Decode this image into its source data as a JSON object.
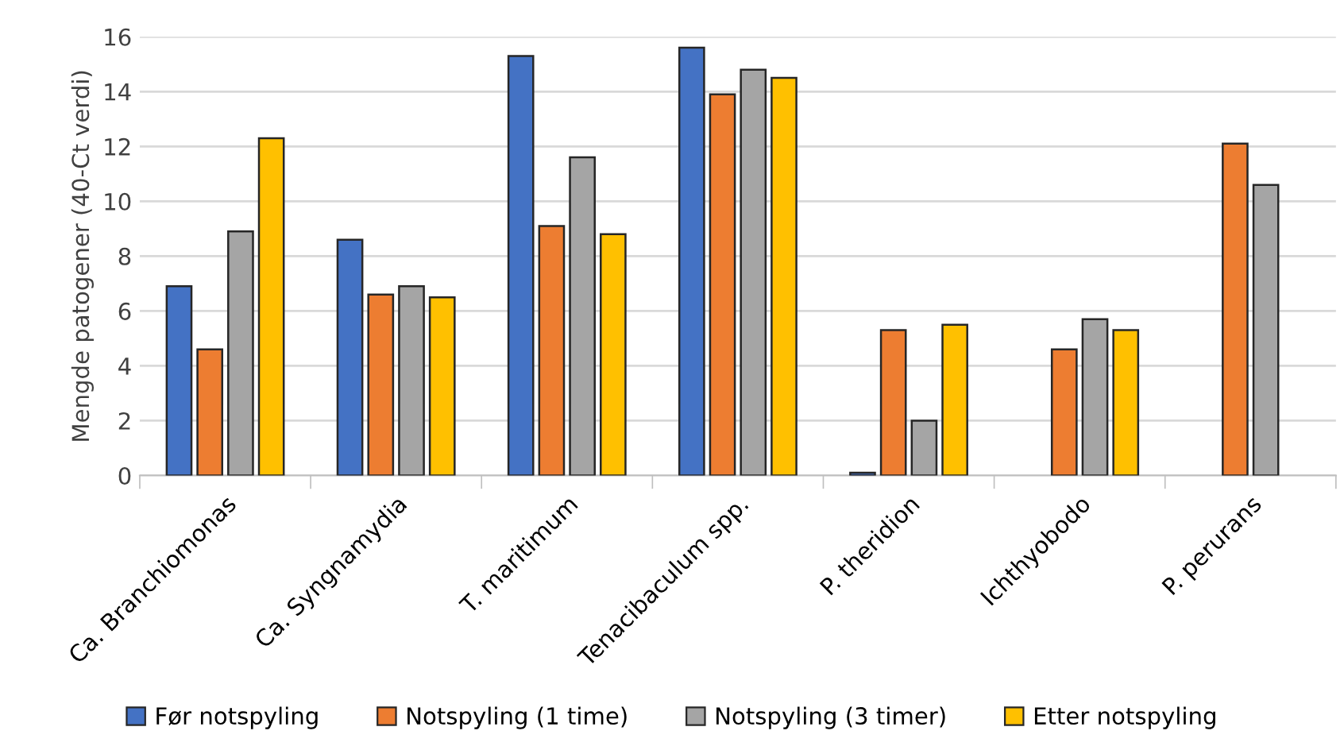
{
  "chart_data": {
    "type": "bar",
    "ylabel": "Mengde patogener (40-Ct verdi)",
    "categories": [
      "Ca. Branchiomonas",
      "Ca. Syngnamydia",
      "T. maritimum",
      "Tenacibaculum spp.",
      "P. theridion",
      "Ichthyobodo",
      "P. perurans"
    ],
    "series": [
      {
        "name": "Før notspyling",
        "color": "#4472c4",
        "values": [
          6.9,
          8.6,
          15.3,
          15.6,
          0.1,
          null,
          null
        ]
      },
      {
        "name": "Notspyling (1 time)",
        "color": "#ed7d31",
        "values": [
          4.6,
          6.6,
          9.1,
          13.9,
          5.3,
          4.6,
          12.1
        ]
      },
      {
        "name": "Notspyling (3 timer)",
        "color": "#a5a5a5",
        "values": [
          8.9,
          6.9,
          11.6,
          14.8,
          2.0,
          5.7,
          10.6
        ]
      },
      {
        "name": "Etter notspyling",
        "color": "#ffc000",
        "values": [
          12.3,
          6.5,
          8.8,
          14.5,
          5.5,
          5.3,
          null
        ]
      }
    ],
    "ylim": [
      0,
      16
    ],
    "yticks": [
      0,
      2,
      4,
      6,
      8,
      10,
      12,
      14,
      16
    ],
    "grid": "y",
    "legend": "bottom"
  }
}
